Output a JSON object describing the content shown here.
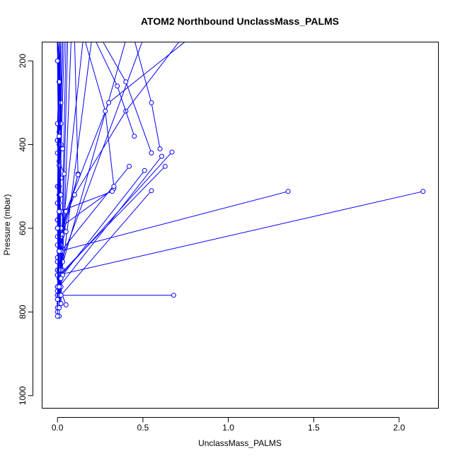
{
  "chart_data": {
    "type": "line",
    "title": "ATOM2 Northbound UnclassMass_PALMS",
    "xlabel": "UnclassMass_PALMS",
    "ylabel": "Pressure (mbar)",
    "xlim": [
      -0.09,
      2.23
    ],
    "ylim": [
      1030,
      155
    ],
    "y_reversed": true,
    "x_ticks": [
      0.0,
      0.5,
      1.0,
      1.5,
      2.0
    ],
    "x_tick_labels": [
      "0.0",
      "0.5",
      "1.0",
      "1.5",
      "2.0"
    ],
    "y_ticks": [
      200,
      400,
      600,
      800,
      1000
    ],
    "y_tick_labels": [
      "200",
      "400",
      "600",
      "800",
      "1000"
    ],
    "grid": false,
    "legend": "none",
    "series_color": "#0000ff",
    "series": [
      {
        "x": [
          0.68,
          0.01,
          0.0,
          0.01,
          0.0,
          0.02,
          0.01
        ],
        "y": [
          760,
          760,
          790,
          810,
          760,
          740,
          700
        ]
      },
      {
        "x": [
          2.14,
          0.0,
          0.01,
          0.0,
          0.02,
          0.01,
          0.03,
          0.02,
          0.5
        ],
        "y": [
          512,
          712,
          740,
          750,
          780,
          760,
          700,
          680,
          150
        ]
      },
      {
        "x": [
          1.35,
          0.01,
          0.0,
          0.02,
          0.01,
          0.0,
          0.02,
          0.4
        ],
        "y": [
          512,
          655,
          700,
          720,
          740,
          760,
          700,
          150
        ]
      },
      {
        "x": [
          0.67,
          0.02,
          0.0,
          0.01,
          0.0,
          0.02,
          0.2
        ],
        "y": [
          418,
          712,
          760,
          780,
          740,
          720,
          150
        ]
      },
      {
        "x": [
          0.61,
          0.01,
          0.03,
          0.0,
          0.01,
          0.02,
          0.15
        ],
        "y": [
          428,
          740,
          700,
          680,
          655,
          640,
          150
        ]
      },
      {
        "x": [
          0.63,
          0.01,
          0.0,
          0.02,
          0.01,
          0.03,
          0.08
        ],
        "y": [
          452,
          712,
          740,
          760,
          700,
          680,
          150
        ]
      },
      {
        "x": [
          0.55,
          0.02,
          0.01,
          0.0,
          0.02,
          0.06
        ],
        "y": [
          510,
          760,
          780,
          800,
          780,
          150
        ]
      },
      {
        "x": [
          0.51,
          0.03,
          0.0,
          0.01,
          0.02,
          0.05
        ],
        "y": [
          462,
          712,
          740,
          760,
          740,
          150
        ]
      },
      {
        "x": [
          0.42,
          0.02,
          0.0,
          0.01,
          0.0,
          0.04
        ],
        "y": [
          452,
          655,
          680,
          700,
          712,
          150
        ]
      },
      {
        "x": [
          0.33,
          0.01,
          0.0,
          0.02,
          0.01,
          0.12,
          0.1
        ],
        "y": [
          505,
          600,
          620,
          640,
          655,
          470,
          150
        ]
      },
      {
        "x": [
          0.32,
          0.01,
          0.0,
          0.01,
          0.03
        ],
        "y": [
          512,
          560,
          580,
          600,
          150
        ]
      },
      {
        "x": [
          0.12,
          0.02,
          0.0,
          0.01,
          0.0,
          0.02
        ],
        "y": [
          472,
          620,
          640,
          655,
          670,
          150
        ]
      },
      {
        "x": [
          0.05,
          0.02,
          0.0,
          0.01,
          0.0,
          0.02,
          0.01
        ],
        "y": [
          608,
          560,
          540,
          520,
          500,
          480,
          150
        ]
      },
      {
        "x": [
          0.05,
          0.01,
          0.0,
          0.02,
          0.01
        ],
        "y": [
          783,
          740,
          712,
          700,
          150
        ]
      },
      {
        "x": [
          0.04,
          0.01,
          0.0,
          0.02,
          0.0,
          0.01
        ],
        "y": [
          470,
          440,
          420,
          400,
          390,
          150
        ]
      },
      {
        "x": [
          0.03,
          0.0,
          0.01,
          0.02,
          0.0
        ],
        "y": [
          410,
          390,
          370,
          350,
          150
        ]
      },
      {
        "x": [
          0.03,
          0.01,
          0.0,
          0.02,
          0.01,
          0.0
        ],
        "y": [
          615,
          600,
          580,
          560,
          540,
          150
        ]
      },
      {
        "x": [
          0.02,
          0.0,
          0.01,
          0.0,
          0.01
        ],
        "y": [
          480,
          500,
          520,
          540,
          150
        ]
      },
      {
        "x": [
          0.0,
          0.01,
          0.0,
          0.02,
          0.0
        ],
        "y": [
          700,
          720,
          740,
          760,
          150
        ]
      },
      {
        "x": [
          0.76,
          0.3,
          0.05,
          0.02,
          0.01
        ],
        "y": [
          150,
          300,
          560,
          655,
          700
        ]
      },
      {
        "x": [
          0.72,
          0.4,
          0.1,
          0.02
        ],
        "y": [
          150,
          320,
          520,
          600
        ]
      },
      {
        "x": [
          0.45,
          0.55,
          0.6
        ],
        "y": [
          150,
          300,
          410
        ]
      },
      {
        "x": [
          0.26,
          0.4,
          0.55
        ],
        "y": [
          150,
          250,
          420
        ]
      },
      {
        "x": [
          0.16,
          0.28,
          0.33
        ],
        "y": [
          150,
          320,
          500
        ]
      },
      {
        "x": [
          0.22,
          0.35,
          0.45
        ],
        "y": [
          150,
          260,
          380
        ]
      },
      {
        "x": [
          0.0,
          0.01,
          0.0
        ],
        "y": [
          810,
          500,
          150
        ]
      },
      {
        "x": [
          0.01,
          0.0,
          0.01
        ],
        "y": [
          790,
          600,
          150
        ]
      },
      {
        "x": [
          0.0,
          0.01,
          0.0
        ],
        "y": [
          770,
          400,
          150
        ]
      },
      {
        "x": [
          0.01,
          0.0,
          0.02
        ],
        "y": [
          740,
          350,
          150
        ]
      },
      {
        "x": [
          0.02,
          0.01,
          0.0
        ],
        "y": [
          720,
          450,
          150
        ]
      },
      {
        "x": [
          0.01,
          0.02,
          0.01
        ],
        "y": [
          655,
          300,
          150
        ]
      },
      {
        "x": [
          0.0,
          0.01,
          0.02
        ],
        "y": [
          600,
          250,
          150
        ]
      },
      {
        "x": [
          0.01,
          0.0,
          0.01
        ],
        "y": [
          560,
          200,
          150
        ]
      },
      {
        "x": [
          0.02,
          0.01,
          0.03
        ],
        "y": [
          520,
          380,
          150
        ]
      }
    ]
  }
}
